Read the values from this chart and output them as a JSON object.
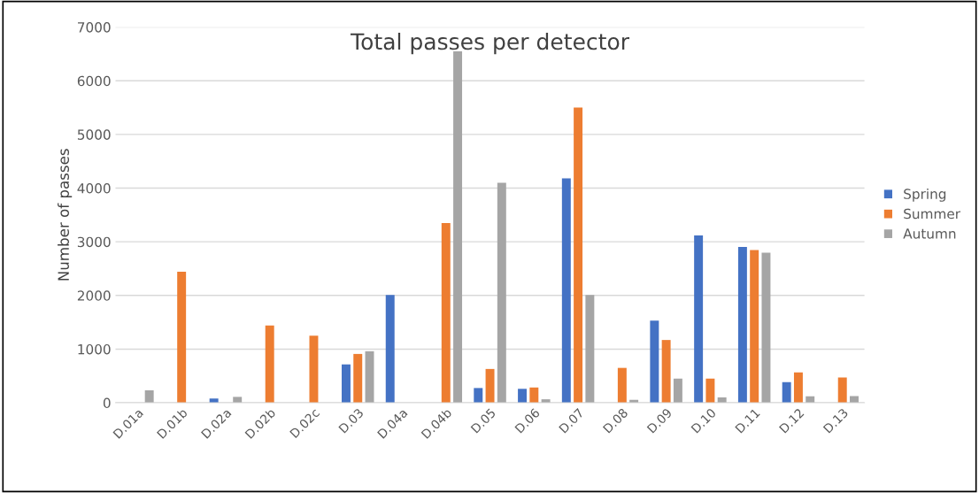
{
  "chart_data": {
    "type": "bar",
    "title": "Total passes per detector",
    "ylabel": "Number of passes",
    "categories": [
      "D.01a",
      "D.01b",
      "D.02a",
      "D.02b",
      "D.02c",
      "D.03",
      "D.04a",
      "D.04b",
      "D.05",
      "D.06",
      "D.07",
      "D.08",
      "D.09",
      "D.10",
      "D.11",
      "D.12",
      "D.13"
    ],
    "series": [
      {
        "name": "Spring",
        "color": "#4472c4",
        "values": [
          0,
          0,
          80,
          0,
          0,
          715,
          2010,
          0,
          275,
          260,
          4180,
          0,
          1530,
          3120,
          2905,
          385,
          0
        ]
      },
      {
        "name": "Summer",
        "color": "#ed7d31",
        "values": [
          0,
          2440,
          0,
          1440,
          1250,
          910,
          0,
          3350,
          630,
          285,
          5500,
          650,
          1170,
          450,
          2845,
          565,
          470
        ]
      },
      {
        "name": "Autumn",
        "color": "#a5a5a5",
        "values": [
          230,
          0,
          110,
          0,
          0,
          960,
          0,
          6550,
          4100,
          65,
          2010,
          55,
          450,
          100,
          2795,
          120,
          125
        ]
      }
    ],
    "ylim": [
      0,
      7000
    ],
    "yticks": [
      0,
      1000,
      2000,
      3000,
      4000,
      5000,
      6000,
      7000
    ],
    "grid": "y",
    "legend": "right"
  }
}
